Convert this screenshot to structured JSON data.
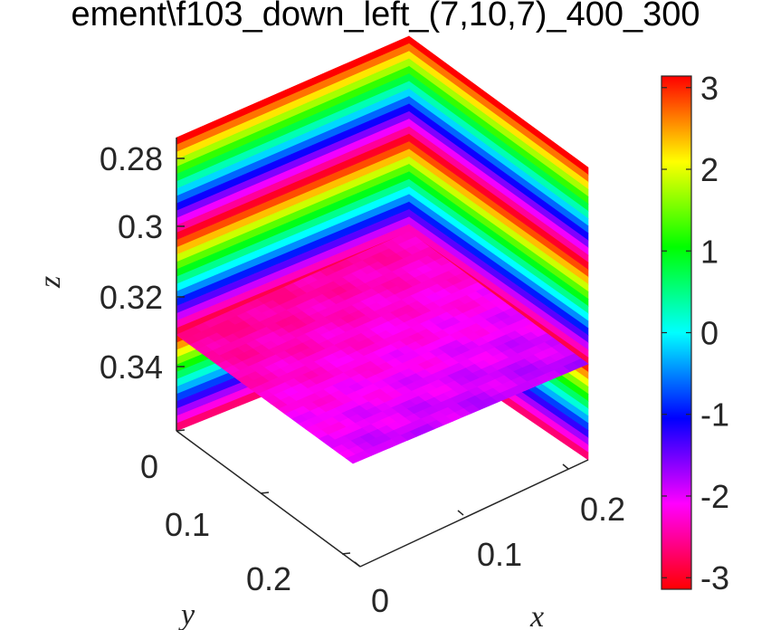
{
  "chart_data": {
    "type": "heatmap",
    "title": "ement\\f103_down_left_(7,10,7)_400_300",
    "xlabel": "x",
    "ylabel": "y",
    "zlabel": "z",
    "x_ticks": [
      "0",
      "0.1",
      "0.2"
    ],
    "y_ticks": [
      "0",
      "0.1",
      "0.2"
    ],
    "z_ticks": [
      "0.28",
      "0.3",
      "0.32",
      "0.34"
    ],
    "z_direction": "reversed",
    "colorbar": {
      "colormap": "hsv",
      "range": [
        -3.14159,
        3.14159
      ],
      "tick_labels": [
        "3",
        "2",
        "1",
        "0",
        "-1",
        "-2",
        "-3"
      ],
      "tick_values": [
        3,
        2,
        1,
        0,
        -1,
        -2,
        -3
      ]
    },
    "planes": [
      {
        "name": "xz-back-wall",
        "pattern": "stripes along z",
        "stripes_per_wall": 40,
        "phase_wraps": 3
      },
      {
        "name": "yz-back-wall",
        "pattern": "stripes along z",
        "stripes_per_wall": 40,
        "phase_wraps": 3
      },
      {
        "name": "xy-slice",
        "pattern": "nearly uniform",
        "value_range": [
          -2.6,
          -1.6
        ]
      }
    ]
  }
}
